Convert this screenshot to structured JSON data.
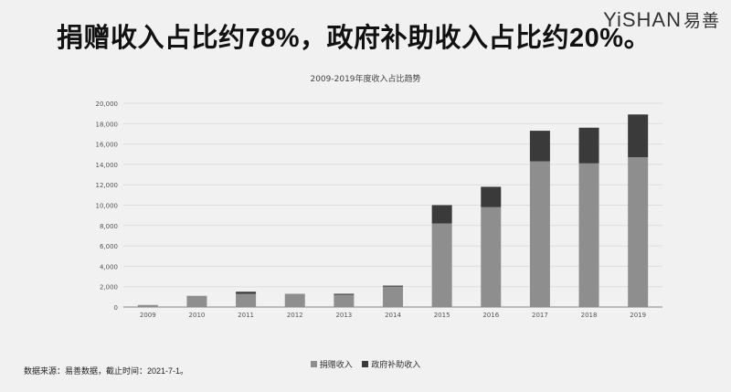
{
  "headline": "捐赠收入占比约78%，政府补助收入占比约20%。",
  "logo": {
    "brand": "YiSHAN",
    "cn": "易善"
  },
  "source": "数据来源：易善数据，截止时间：2021-7-1。",
  "colors": {
    "donation": "#8e8e8e",
    "government": "#3a3a3a",
    "grid": "#dddddd",
    "axis": "#888888"
  },
  "chart_data": {
    "type": "bar",
    "stacked": true,
    "title": "2009-2019年度收入占比趋势",
    "categories": [
      "2009",
      "2010",
      "2011",
      "2012",
      "2013",
      "2014",
      "2015",
      "2016",
      "2017",
      "2018",
      "2019"
    ],
    "series": [
      {
        "name": "捐赠收入",
        "color": "#8e8e8e",
        "values": [
          200,
          1100,
          1300,
          1300,
          1200,
          2000,
          8200,
          9800,
          14300,
          14100,
          14700
        ]
      },
      {
        "name": "政府补助收入",
        "color": "#3a3a3a",
        "values": [
          0,
          0,
          200,
          0,
          100,
          100,
          1800,
          2000,
          3000,
          3500,
          4200
        ]
      }
    ],
    "yticks": [
      "0",
      "2,000",
      "4,000",
      "6,000",
      "8,000",
      "10,000",
      "12,000",
      "14,000",
      "16,000",
      "18,000",
      "20,000"
    ],
    "ylim": [
      0,
      20000
    ],
    "grid": true,
    "legend_position": "bottom"
  }
}
